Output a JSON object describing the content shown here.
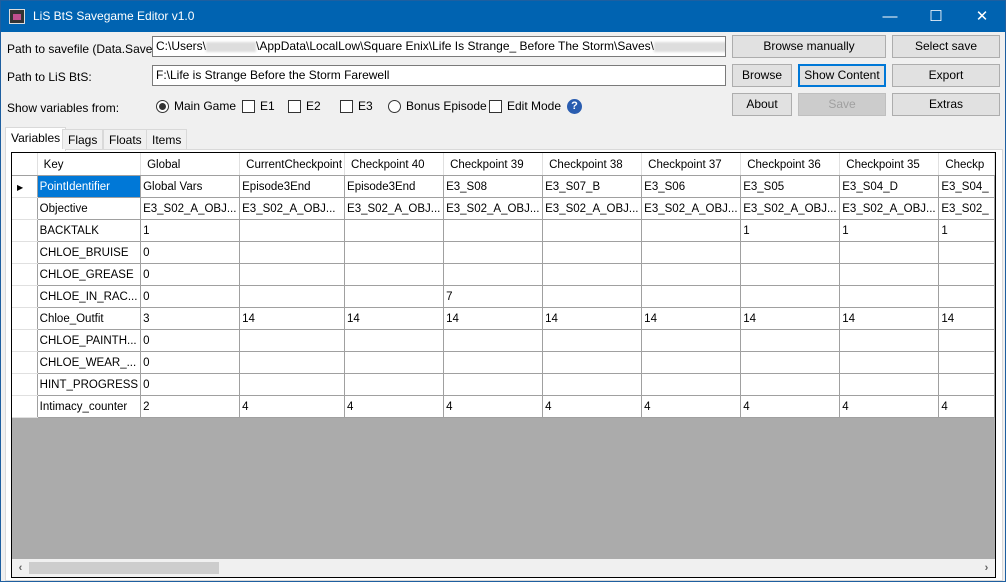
{
  "window": {
    "title": "LiS BtS Savegame Editor v1.0",
    "minimize": "—",
    "maximize": "☐",
    "close": "✕"
  },
  "form": {
    "savefile_label": "Path to savefile (Data.Save):",
    "savefile_value_a": "C:\\Users\\",
    "savefile_value_b": "\\AppData\\LocalLow\\Square Enix\\Life Is Strange_ Before The Storm\\Saves\\",
    "savefile_value_c": "S",
    "game_label": "Path to LiS BtS:",
    "game_value": "F:\\Life is Strange Before the Storm Farewell",
    "show_label": "Show variables from:",
    "options": [
      {
        "label": "Main Game",
        "type": "radio",
        "checked": true
      },
      {
        "label": "E1",
        "type": "checkbox",
        "checked": false
      },
      {
        "label": "E2",
        "type": "checkbox",
        "checked": false
      },
      {
        "label": "E3",
        "type": "checkbox",
        "checked": false
      },
      {
        "label": "Bonus Episode",
        "type": "radio",
        "checked": false
      },
      {
        "label": "Edit Mode",
        "type": "checkbox",
        "checked": false
      }
    ],
    "help": "?"
  },
  "buttons": {
    "browse_manually": "Browse manually",
    "select_save": "Select save",
    "browse": "Browse",
    "show_content": "Show Content",
    "export": "Export",
    "about": "About",
    "save": "Save",
    "extras": "Extras"
  },
  "tabs": [
    "Variables",
    "Flags",
    "Floats",
    "Items"
  ],
  "table": {
    "columns": [
      "Key",
      "Global",
      "CurrentCheckpoint",
      "Checkpoint 40",
      "Checkpoint 39",
      "Checkpoint 38",
      "Checkpoint 37",
      "Checkpoint 36",
      "Checkpoint 35",
      "Checkp"
    ],
    "rows": [
      [
        "PointIdentifier",
        "Global Vars",
        "Episode3End",
        "Episode3End",
        "E3_S08",
        "E3_S07_B",
        "E3_S06",
        "E3_S05",
        "E3_S04_D",
        "E3_S04_"
      ],
      [
        "Objective",
        "E3_S02_A_OBJ...",
        "E3_S02_A_OBJ...",
        "E3_S02_A_OBJ...",
        "E3_S02_A_OBJ...",
        "E3_S02_A_OBJ...",
        "E3_S02_A_OBJ...",
        "E3_S02_A_OBJ...",
        "E3_S02_A_OBJ...",
        "E3_S02_"
      ],
      [
        "BACKTALK",
        "1",
        "",
        "",
        "",
        "",
        "",
        "1",
        "1",
        "1"
      ],
      [
        "CHLOE_BRUISE",
        "0",
        "",
        "",
        "",
        "",
        "",
        "",
        "",
        ""
      ],
      [
        "CHLOE_GREASE",
        "0",
        "",
        "",
        "",
        "",
        "",
        "",
        "",
        ""
      ],
      [
        "CHLOE_IN_RAC...",
        "0",
        "",
        "",
        "7",
        "",
        "",
        "",
        "",
        ""
      ],
      [
        "Chloe_Outfit",
        "3",
        "14",
        "14",
        "14",
        "14",
        "14",
        "14",
        "14",
        "14"
      ],
      [
        "CHLOE_PAINTH...",
        "0",
        "",
        "",
        "",
        "",
        "",
        "",
        "",
        ""
      ],
      [
        "CHLOE_WEAR_...",
        "0",
        "",
        "",
        "",
        "",
        "",
        "",
        "",
        ""
      ],
      [
        "HINT_PROGRESS",
        "0",
        "",
        "",
        "",
        "",
        "",
        "",
        "",
        ""
      ],
      [
        "Intimacy_counter",
        "2",
        "4",
        "4",
        "4",
        "4",
        "4",
        "4",
        "4",
        "4"
      ]
    ]
  },
  "colors": {
    "titlebar": "#0063b1",
    "selection": "#0078d7",
    "empty_grid": "#ababab"
  }
}
